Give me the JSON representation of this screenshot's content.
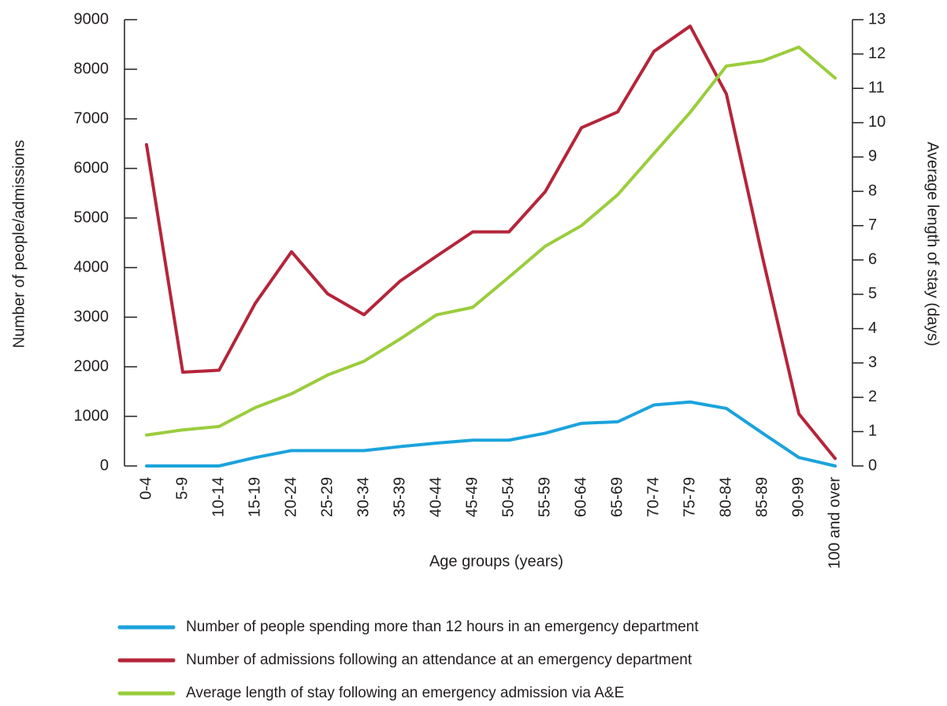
{
  "chart_data": {
    "type": "line",
    "x_label": "Age groups (years)",
    "y_label": "Number of people/admissions",
    "y2_label": "Average length of stay (days)",
    "categories": [
      "0-4",
      "5-9",
      "10-14",
      "15-19",
      "20-24",
      "25-29",
      "30-34",
      "35-39",
      "40-44",
      "45-49",
      "50-54",
      "55-59",
      "60-64",
      "65-69",
      "70-74",
      "75-79",
      "80-84",
      "85-89",
      "90-99",
      "100 and over"
    ],
    "series": [
      {
        "name": "Number of people spending more than 12 hours in an emergency department",
        "color": "#1ba3dc",
        "values": [
          0,
          0,
          0,
          170,
          310,
          310,
          310,
          390,
          460,
          520,
          520,
          660,
          860,
          890,
          1230,
          1290,
          1160,
          660,
          170,
          0
        ]
      },
      {
        "name": "Number of admissions following an attendance at an emergency department",
        "color": "#b5253a",
        "values": [
          6480,
          1890,
          1930,
          3280,
          4320,
          3470,
          3050,
          3730,
          4230,
          4720,
          4720,
          5530,
          6820,
          7140,
          8360,
          8870,
          7500,
          4200,
          1050,
          150
        ]
      },
      {
        "name": "Average length of stay following an emergency admission via A&E",
        "color": "#9acd3c",
        "axis": "y2",
        "values": [
          0.9,
          1.05,
          1.15,
          1.7,
          2.1,
          2.65,
          3.05,
          3.7,
          4.4,
          4.62,
          5.5,
          6.4,
          7.0,
          7.9,
          9.1,
          10.3,
          11.65,
          11.8,
          12.2,
          11.3
        ]
      }
    ],
    "ylim": [
      0,
      9000
    ],
    "yticks": [
      0,
      1000,
      2000,
      3000,
      4000,
      5000,
      6000,
      7000,
      8000,
      9000
    ],
    "y2lim": [
      0,
      13
    ],
    "y2ticks": [
      0,
      1,
      2,
      3,
      4,
      5,
      6,
      7,
      8,
      9,
      10,
      11,
      12,
      13
    ],
    "legend": "bottom"
  }
}
